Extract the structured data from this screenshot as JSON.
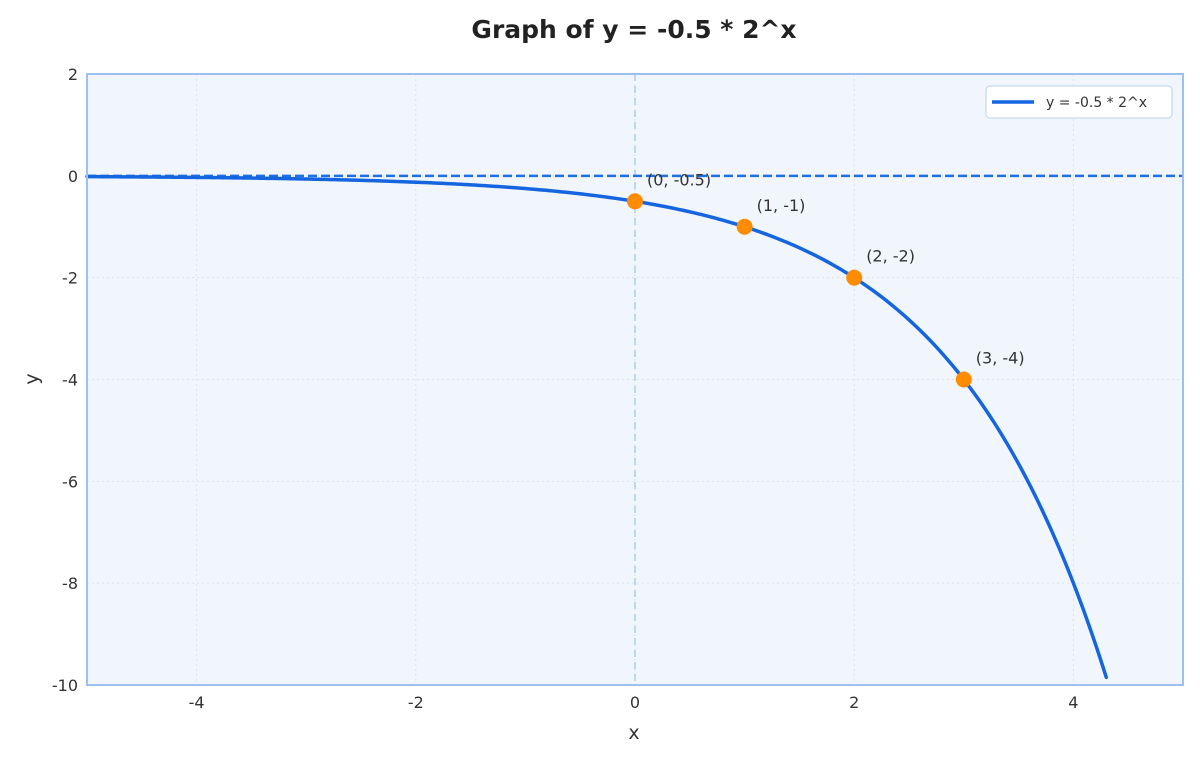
{
  "chart_data": {
    "type": "line",
    "title": "Graph of y = -0.5 * 2^x",
    "xlabel": "x",
    "ylabel": "y",
    "xlim": [
      -5,
      5
    ],
    "ylim": [
      -10,
      2
    ],
    "x_ticks": [
      -4,
      -2,
      0,
      2,
      4
    ],
    "y_ticks": [
      2,
      0,
      -2,
      -4,
      -6,
      -8,
      -10
    ],
    "grid": true,
    "legend_position": "top-right",
    "series": [
      {
        "name": "y = -0.5 * 2^x",
        "function": "-0.5 * 2^x",
        "x_range": [
          -5,
          4.3
        ],
        "color": "#1565e0"
      }
    ],
    "asymptote": {
      "y": 0,
      "style": "dashed",
      "color": "#1f6fe5"
    },
    "highlight_points": [
      {
        "x": 0,
        "y": -0.5,
        "label": "(0, -0.5)"
      },
      {
        "x": 1,
        "y": -1,
        "label": "(1, -1)"
      },
      {
        "x": 2,
        "y": -2,
        "label": "(2, -2)"
      },
      {
        "x": 3,
        "y": -4,
        "label": "(3, -4)"
      }
    ],
    "colors": {
      "curve": "#1565e0",
      "points": "#ff8c00",
      "plot_background": "#f0f6fc",
      "frame": "#9dc0f0",
      "grid": "#d9e3ee",
      "y_axis_line": "#bcd6f5"
    }
  }
}
